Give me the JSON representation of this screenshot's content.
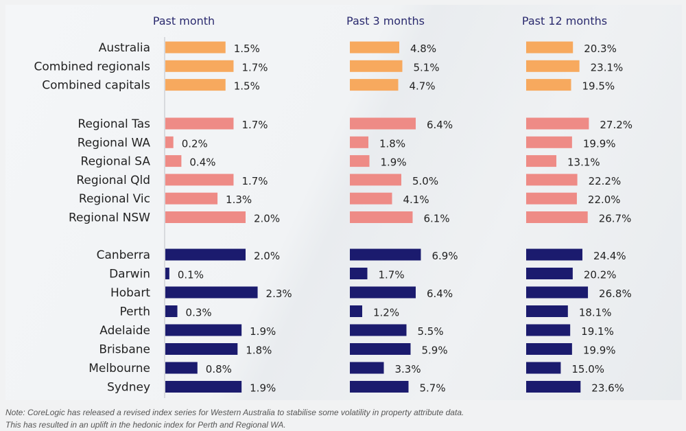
{
  "chart_data": {
    "type": "bar",
    "orientation": "horizontal",
    "title": "",
    "panels": [
      {
        "name": "Past month",
        "key": "m1"
      },
      {
        "name": "Past 3 months",
        "key": "m3"
      },
      {
        "name": "Past 12 months",
        "key": "m12"
      }
    ],
    "groups": [
      {
        "name": "aggregates",
        "color": "#f7a95e",
        "rows": [
          {
            "label": "Australia",
            "m1": 1.5,
            "m3": 4.8,
            "m12": 20.3
          },
          {
            "label": "Combined regionals",
            "m1": 1.7,
            "m3": 5.1,
            "m12": 23.1
          },
          {
            "label": "Combined capitals",
            "m1": 1.5,
            "m3": 4.7,
            "m12": 19.5
          }
        ]
      },
      {
        "name": "regionals",
        "color": "#ee8b86",
        "rows": [
          {
            "label": "Regional Tas",
            "m1": 1.7,
            "m3": 6.4,
            "m12": 27.2
          },
          {
            "label": "Regional WA",
            "m1": 0.2,
            "m3": 1.8,
            "m12": 19.9
          },
          {
            "label": "Regional SA",
            "m1": 0.4,
            "m3": 1.9,
            "m12": 13.1
          },
          {
            "label": "Regional Qld",
            "m1": 1.7,
            "m3": 5.0,
            "m12": 22.2
          },
          {
            "label": "Regional Vic",
            "m1": 1.3,
            "m3": 4.1,
            "m12": 22.0
          },
          {
            "label": "Regional NSW",
            "m1": 2.0,
            "m3": 6.1,
            "m12": 26.7
          }
        ]
      },
      {
        "name": "capitals",
        "color": "#1b1b6e",
        "rows": [
          {
            "label": "Canberra",
            "m1": 2.0,
            "m3": 6.9,
            "m12": 24.4
          },
          {
            "label": "Darwin",
            "m1": 0.1,
            "m3": 1.7,
            "m12": 20.2
          },
          {
            "label": "Hobart",
            "m1": 2.3,
            "m3": 6.4,
            "m12": 26.8
          },
          {
            "label": "Perth",
            "m1": 0.3,
            "m3": 1.2,
            "m12": 18.1
          },
          {
            "label": "Adelaide",
            "m1": 1.9,
            "m3": 5.5,
            "m12": 19.1
          },
          {
            "label": "Brisbane",
            "m1": 1.8,
            "m3": 5.9,
            "m12": 19.9
          },
          {
            "label": "Melbourne",
            "m1": 0.8,
            "m3": 3.3,
            "m12": 15.0
          },
          {
            "label": "Sydney",
            "m1": 1.9,
            "m3": 5.7,
            "m12": 23.6
          }
        ]
      }
    ],
    "value_suffix": "%",
    "xlabel": "",
    "ylabel": "",
    "grid": false,
    "legend": "none"
  },
  "note": {
    "line1": "Note: CoreLogic has released a revised index series for Western Australia to stabilise some volatility in property attribute data.",
    "line2": "This has resulted in an uplift in the hedonic index for Perth and Regional WA."
  }
}
